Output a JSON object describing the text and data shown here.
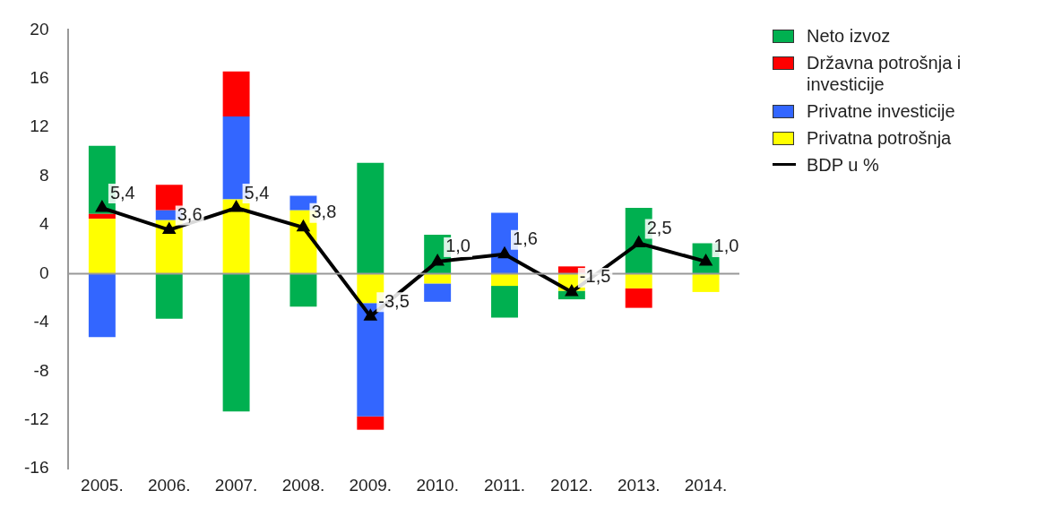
{
  "chart_data": {
    "type": "bar",
    "stacked": true,
    "categories": [
      "2005.",
      "2006.",
      "2007.",
      "2008.",
      "2009.",
      "2010.",
      "2011.",
      "2012.",
      "2013.",
      "2014."
    ],
    "series": [
      {
        "name": "Privatna potrošnja",
        "color": "#ffff00",
        "values": [
          4.5,
          4.4,
          6.1,
          5.2,
          -2.4,
          -0.8,
          -1.0,
          -1.4,
          -1.2,
          -1.5
        ]
      },
      {
        "name": "Privatne investicije",
        "color": "#3366ff",
        "values": [
          -5.2,
          0.8,
          6.8,
          1.2,
          -9.3,
          -1.5,
          5.0,
          null,
          null,
          null
        ]
      },
      {
        "name": "Državna potrošnja i investicije",
        "color": "#ff0000",
        "values": [
          0.4,
          2.1,
          3.7,
          null,
          -1.1,
          null,
          null,
          0.6,
          -1.6,
          null
        ]
      },
      {
        "name": "Neto izvoz",
        "color": "#00b050",
        "values": [
          5.6,
          -3.7,
          -11.3,
          -2.7,
          9.1,
          3.2,
          -2.6,
          -0.7,
          5.4,
          2.5
        ]
      },
      {
        "name": "BDP u %",
        "type": "line",
        "color": "#000000",
        "values": [
          5.4,
          3.6,
          5.4,
          3.8,
          -3.5,
          1.0,
          1.6,
          -1.5,
          2.5,
          1.0
        ],
        "value_labels": [
          "5,4",
          "3,6",
          "5,4",
          "3,8",
          "-3,5",
          "1,0",
          "1,6",
          "-1,5",
          "2,5",
          "1,0"
        ]
      }
    ],
    "ylim": [
      -16,
      20
    ],
    "yticks": [
      -16,
      -12,
      -8,
      -4,
      0,
      4,
      8,
      12,
      16,
      20
    ],
    "grid": false,
    "ref_lines": [
      {
        "axis": "y",
        "value": 0,
        "color": "#999999"
      }
    ],
    "legend": "right",
    "marker": "triangle",
    "line_style": "solid"
  }
}
